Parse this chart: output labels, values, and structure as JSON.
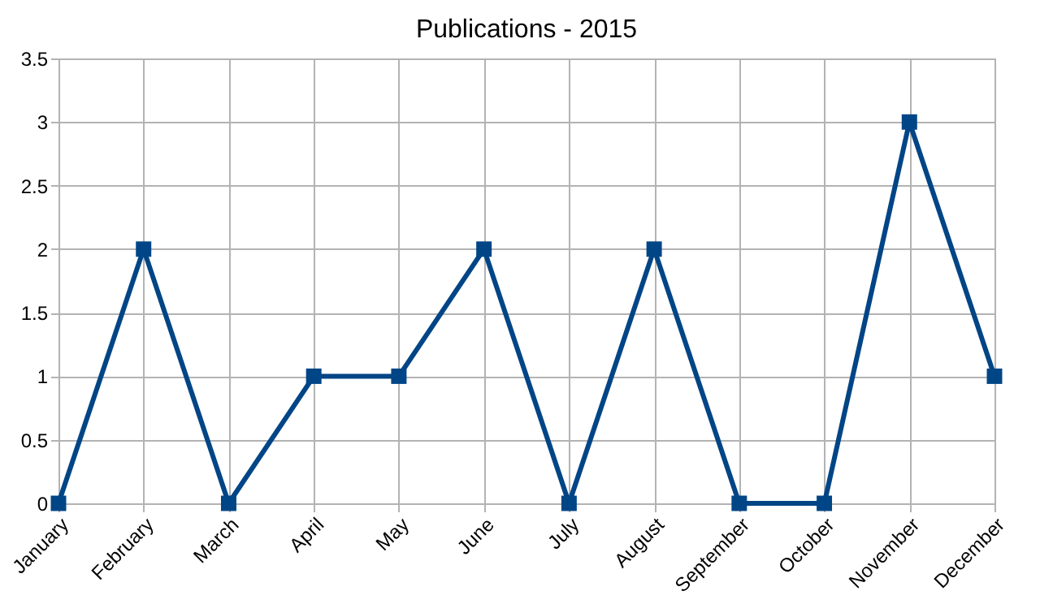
{
  "chart_data": {
    "type": "line",
    "title": "Publications - 2015",
    "categories": [
      "January",
      "February",
      "March",
      "April",
      "May",
      "June",
      "July",
      "August",
      "September",
      "October",
      "November",
      "December"
    ],
    "series": [
      {
        "color": "#004586",
        "values": [
          0,
          2,
          0,
          1,
          1,
          2,
          0,
          2,
          0,
          0,
          3,
          1
        ]
      }
    ],
    "ylim": [
      0,
      3.5
    ],
    "yticks": [
      0,
      0.5,
      1,
      1.5,
      2,
      2.5,
      3,
      3.5
    ],
    "grid": true,
    "marker": "square",
    "line_style": "solid"
  }
}
